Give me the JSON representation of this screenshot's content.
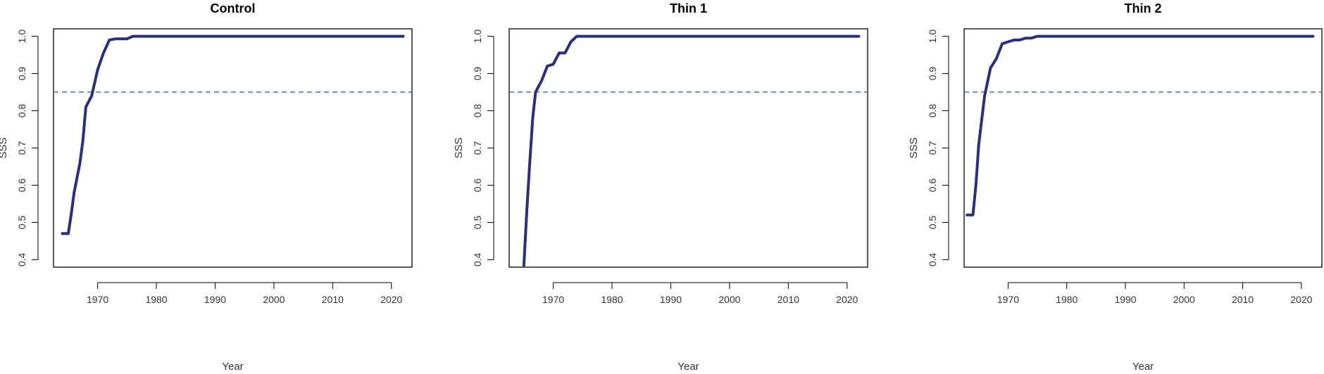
{
  "chart_data": [
    {
      "type": "line",
      "title": "Control",
      "xlabel": "Year",
      "ylabel": "SSS",
      "xlim": [
        1962.5,
        2023.5
      ],
      "ylim": [
        0.38,
        1.02
      ],
      "xticks": [
        1970,
        1980,
        1990,
        2000,
        2010,
        2020
      ],
      "yticks": [
        0.4,
        0.5,
        0.6,
        0.7,
        0.8,
        0.9,
        1.0
      ],
      "ytick_labels": [
        "0.4",
        "0.5",
        "0.6",
        "0.7",
        "0.8",
        "0.9",
        "1.0"
      ],
      "reference_line": {
        "y": 0.85,
        "style": "dashed",
        "color": "#4d6fb3"
      },
      "series": [
        {
          "color": "#2b2f7a",
          "x": [
            1964,
            1965,
            1965.5,
            1966,
            1967,
            1967.5,
            1968,
            1969,
            1970,
            1971,
            1972,
            1973,
            1974,
            1975,
            1976,
            1980,
            1990,
            2000,
            2010,
            2022
          ],
          "y": [
            0.47,
            0.47,
            0.52,
            0.58,
            0.66,
            0.72,
            0.81,
            0.84,
            0.91,
            0.955,
            0.99,
            0.993,
            0.993,
            0.993,
            1.0,
            1.0,
            1.0,
            1.0,
            1.0,
            1.0
          ]
        }
      ]
    },
    {
      "type": "line",
      "title": "Thin 1",
      "xlabel": "Year",
      "ylabel": "SSS",
      "xlim": [
        1962.5,
        2023.5
      ],
      "ylim": [
        0.38,
        1.02
      ],
      "xticks": [
        1970,
        1980,
        1990,
        2000,
        2010,
        2020
      ],
      "yticks": [
        0.4,
        0.5,
        0.6,
        0.7,
        0.8,
        0.9,
        1.0
      ],
      "ytick_labels": [
        "0.4",
        "0.5",
        "0.6",
        "0.7",
        "0.8",
        "0.9",
        "1.0"
      ],
      "reference_line": {
        "y": 0.85,
        "style": "dashed",
        "color": "#4d6fb3"
      },
      "series": [
        {
          "color": "#2b2f7a",
          "x": [
            1965,
            1965.5,
            1966,
            1966.5,
            1967,
            1968,
            1969,
            1970,
            1971,
            1972,
            1973,
            1974,
            1975,
            1980,
            1990,
            2000,
            2010,
            2022
          ],
          "y": [
            0.385,
            0.53,
            0.66,
            0.78,
            0.85,
            0.88,
            0.92,
            0.925,
            0.955,
            0.955,
            0.985,
            1.0,
            1.0,
            1.0,
            1.0,
            1.0,
            1.0,
            1.0
          ]
        }
      ]
    },
    {
      "type": "line",
      "title": "Thin 2",
      "xlabel": "Year",
      "ylabel": "SSS",
      "xlim": [
        1962.5,
        2023.5
      ],
      "ylim": [
        0.38,
        1.02
      ],
      "xticks": [
        1970,
        1980,
        1990,
        2000,
        2010,
        2020
      ],
      "yticks": [
        0.4,
        0.5,
        0.6,
        0.7,
        0.8,
        0.9,
        1.0
      ],
      "ytick_labels": [
        "0.4",
        "0.5",
        "0.6",
        "0.7",
        "0.8",
        "0.9",
        "1.0"
      ],
      "reference_line": {
        "y": 0.85,
        "style": "dashed",
        "color": "#4d6fb3"
      },
      "series": [
        {
          "color": "#2b2f7a",
          "x": [
            1963,
            1964,
            1964.5,
            1965,
            1966,
            1967,
            1968,
            1969,
            1970,
            1971,
            1972,
            1973,
            1974,
            1975,
            1980,
            1990,
            2000,
            2010,
            2022
          ],
          "y": [
            0.52,
            0.52,
            0.6,
            0.71,
            0.84,
            0.915,
            0.94,
            0.98,
            0.985,
            0.99,
            0.99,
            0.995,
            0.995,
            1.0,
            1.0,
            1.0,
            1.0,
            1.0,
            1.0
          ]
        }
      ]
    }
  ]
}
